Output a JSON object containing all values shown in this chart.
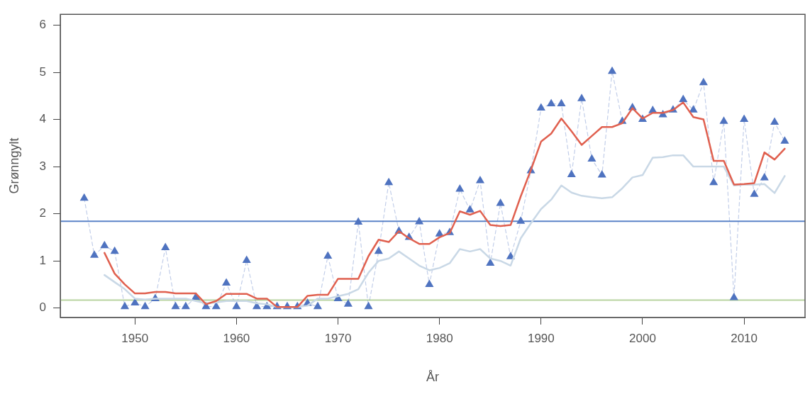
{
  "chart_data": {
    "type": "line",
    "xlabel": "År",
    "ylabel": "Grønngylt",
    "xlim": [
      1942.65,
      2016
    ],
    "xticks": [
      1950,
      1960,
      1970,
      1980,
      1990,
      2000,
      2010
    ],
    "ylim": [
      -0.2,
      6.23
    ],
    "yticks": [
      0,
      1,
      2,
      3,
      4,
      5,
      6
    ],
    "legend": false,
    "ref_lines": [
      {
        "axis": "y",
        "value": 1.84,
        "color": "#5b84c8"
      },
      {
        "axis": "y",
        "value": 0.17,
        "color": "#b8d4a0"
      }
    ],
    "series": [
      {
        "type": "line",
        "marker": "triangle",
        "line_style": "dashed",
        "color": "#4f73c0",
        "x": [
          1945,
          1946,
          1947,
          1948,
          1949,
          1950,
          1951,
          1952,
          1953,
          1954,
          1955,
          1956,
          1957,
          1958,
          1959,
          1960,
          1961,
          1962,
          1963,
          1964,
          1965,
          1966,
          1967,
          1968,
          1969,
          1970,
          1971,
          1972,
          1973,
          1974,
          1975,
          1976,
          1977,
          1978,
          1979,
          1980,
          1981,
          1982,
          1983,
          1984,
          1985,
          1986,
          1987,
          1988,
          1989,
          1990,
          1991,
          1992,
          1993,
          1994,
          1995,
          1996,
          1997,
          1998,
          1999,
          2000,
          2001,
          2002,
          2003,
          2004,
          2005,
          2006,
          2007,
          2008,
          2009,
          2010,
          2011,
          2012,
          2013,
          2014
        ],
        "values": [
          2.33,
          1.12,
          1.32,
          1.2,
          0.03,
          0.11,
          0.03,
          0.2,
          1.28,
          0.03,
          0.03,
          0.23,
          0.03,
          0.03,
          0.53,
          0.03,
          1.01,
          0.03,
          0.03,
          0.03,
          0.03,
          0.03,
          0.1,
          0.03,
          1.1,
          0.2,
          0.08,
          1.82,
          0.03,
          1.2,
          2.66,
          1.63,
          1.5,
          1.83,
          0.5,
          1.57,
          1.6,
          2.52,
          2.08,
          2.7,
          0.95,
          2.22,
          1.09,
          1.84,
          2.91,
          4.24,
          4.33,
          4.33,
          2.83,
          4.44,
          3.16,
          2.82,
          5.02,
          3.96,
          4.25,
          4.0,
          4.19,
          4.1,
          4.2,
          4.42,
          4.2,
          4.78,
          2.66,
          3.96,
          0.22,
          4.0,
          2.41,
          2.76,
          3.94,
          3.54
        ]
      },
      {
        "type": "line",
        "marker": "none",
        "line_style": "solid",
        "color": "#c9d8e6",
        "x": [
          1947,
          1948,
          1949,
          1950,
          1951,
          1952,
          1953,
          1954,
          1955,
          1956,
          1957,
          1958,
          1959,
          1960,
          1961,
          1962,
          1963,
          1964,
          1965,
          1966,
          1967,
          1968,
          1969,
          1970,
          1971,
          1972,
          1973,
          1974,
          1975,
          1976,
          1977,
          1978,
          1979,
          1980,
          1981,
          1982,
          1983,
          1984,
          1985,
          1986,
          1987,
          1988,
          1989,
          1990,
          1991,
          1992,
          1993,
          1994,
          1995,
          1996,
          1997,
          1998,
          1999,
          2000,
          2001,
          2002,
          2003,
          2004,
          2005,
          2006,
          2007,
          2008,
          2009,
          2010,
          2011,
          2012,
          2013,
          2014
        ],
        "values": [
          0.7,
          0.55,
          0.4,
          0.2,
          0.18,
          0.2,
          0.2,
          0.2,
          0.2,
          0.15,
          0.1,
          0.12,
          0.15,
          0.15,
          0.15,
          0.1,
          0.08,
          0.02,
          0.02,
          0.02,
          0.05,
          0.2,
          0.2,
          0.25,
          0.3,
          0.4,
          0.75,
          1.0,
          1.05,
          1.2,
          1.05,
          0.9,
          0.8,
          0.85,
          0.95,
          1.25,
          1.2,
          1.25,
          1.05,
          1.0,
          0.9,
          1.48,
          1.8,
          2.1,
          2.3,
          2.6,
          2.45,
          2.38,
          2.35,
          2.33,
          2.35,
          2.54,
          2.77,
          2.82,
          3.19,
          3.2,
          3.24,
          3.24,
          3.0,
          3.0,
          3.0,
          3.0,
          2.6,
          2.62,
          2.62,
          2.63,
          2.44,
          2.8
        ]
      },
      {
        "type": "line",
        "marker": "none",
        "line_style": "solid",
        "color": "#e0604f",
        "x": [
          1947,
          1948,
          1949,
          1950,
          1951,
          1952,
          1953,
          1954,
          1955,
          1956,
          1957,
          1958,
          1959,
          1960,
          1961,
          1962,
          1963,
          1964,
          1965,
          1966,
          1967,
          1968,
          1969,
          1970,
          1971,
          1972,
          1973,
          1974,
          1975,
          1976,
          1977,
          1978,
          1979,
          1980,
          1981,
          1982,
          1983,
          1984,
          1985,
          1986,
          1987,
          1988,
          1989,
          1990,
          1991,
          1992,
          1993,
          1994,
          1995,
          1996,
          1997,
          1998,
          1999,
          2000,
          2001,
          2002,
          2003,
          2004,
          2005,
          2006,
          2007,
          2008,
          2009,
          2010,
          2011,
          2012,
          2013,
          2014
        ],
        "values": [
          1.17,
          0.73,
          0.5,
          0.31,
          0.31,
          0.34,
          0.34,
          0.31,
          0.31,
          0.31,
          0.08,
          0.15,
          0.3,
          0.3,
          0.3,
          0.2,
          0.2,
          0.02,
          0.02,
          0.02,
          0.26,
          0.28,
          0.28,
          0.62,
          0.62,
          0.62,
          1.1,
          1.45,
          1.4,
          1.63,
          1.48,
          1.36,
          1.36,
          1.5,
          1.59,
          2.05,
          1.98,
          2.06,
          1.76,
          1.74,
          1.76,
          2.37,
          2.93,
          3.53,
          3.7,
          4.02,
          3.75,
          3.46,
          3.65,
          3.84,
          3.84,
          3.92,
          4.24,
          4.02,
          4.14,
          4.14,
          4.2,
          4.36,
          4.05,
          4.0,
          3.12,
          3.12,
          2.62,
          2.63,
          2.65,
          3.3,
          3.15,
          3.38
        ]
      }
    ]
  }
}
